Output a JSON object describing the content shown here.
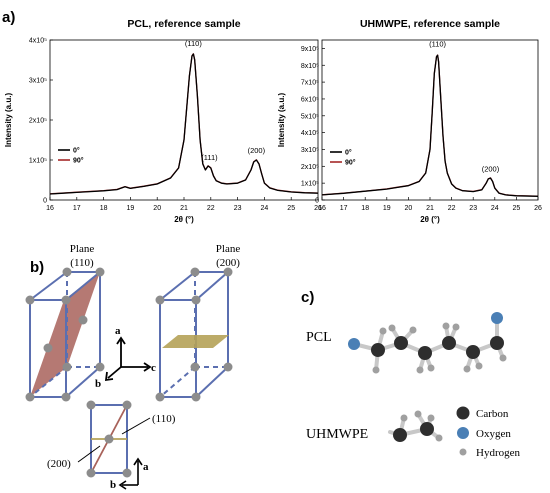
{
  "panels": {
    "a": "a)",
    "b": "b)",
    "c": "c)"
  },
  "chart_data": [
    {
      "type": "line",
      "title": "PCL, reference sample",
      "xlabel": "2θ (°)",
      "ylabel": "Intensity (a.u.)",
      "xlim": [
        16,
        26
      ],
      "ylim": [
        0,
        400000
      ],
      "x_ticks": [
        "16",
        "17",
        "18",
        "19",
        "20",
        "21",
        "22",
        "23",
        "24",
        "25",
        "26"
      ],
      "y_ticks": [
        {
          "value": 0,
          "label": "0"
        },
        {
          "value": 100000,
          "label": "1x10⁵"
        },
        {
          "value": 200000,
          "label": "2x10⁵"
        },
        {
          "value": 300000,
          "label": "3x10⁵"
        },
        {
          "value": 400000,
          "label": "4x10⁵"
        }
      ],
      "legend_position": "left",
      "series": [
        {
          "name": "0°",
          "color": "#000000",
          "x": [
            16,
            16.5,
            17,
            17.5,
            18,
            18.5,
            18.8,
            19,
            19.5,
            20,
            20.5,
            20.8,
            21,
            21.1,
            21.2,
            21.3,
            21.35,
            21.4,
            21.5,
            21.6,
            21.7,
            21.8,
            21.9,
            22,
            22.1,
            22.2,
            22.4,
            22.6,
            23,
            23.3,
            23.5,
            23.6,
            23.7,
            23.8,
            23.9,
            24,
            24.2,
            24.5,
            25,
            25.5,
            26
          ],
          "y": [
            15000,
            17000,
            19000,
            21000,
            23000,
            26000,
            33000,
            29000,
            34000,
            40000,
            55000,
            80000,
            150000,
            230000,
            310000,
            360000,
            365000,
            350000,
            260000,
            150000,
            90000,
            75000,
            85000,
            80000,
            60000,
            48000,
            42000,
            40000,
            42000,
            50000,
            75000,
            95000,
            100000,
            90000,
            65000,
            42000,
            30000,
            24000,
            20000,
            18000,
            17000
          ]
        },
        {
          "name": "90°",
          "color": "#a52a2a",
          "x": [
            16,
            16.5,
            17,
            17.5,
            18,
            18.5,
            18.8,
            19,
            19.5,
            20,
            20.5,
            20.8,
            21,
            21.1,
            21.2,
            21.3,
            21.35,
            21.4,
            21.5,
            21.6,
            21.7,
            21.8,
            21.9,
            22,
            22.1,
            22.2,
            22.4,
            22.6,
            23,
            23.3,
            23.5,
            23.6,
            23.7,
            23.8,
            23.9,
            24,
            24.2,
            24.5,
            25,
            25.5,
            26
          ],
          "y": [
            15500,
            17500,
            19500,
            21500,
            23500,
            26500,
            33500,
            29500,
            34500,
            40500,
            55500,
            80500,
            150500,
            230500,
            310500,
            360500,
            365500,
            350500,
            260500,
            150500,
            90500,
            75500,
            85500,
            80500,
            60500,
            48500,
            42500,
            40500,
            42500,
            50500,
            75500,
            95500,
            100500,
            90500,
            65500,
            42500,
            30500,
            24500,
            20500,
            18500,
            17500
          ]
        }
      ],
      "annotations": [
        {
          "text": "(110)",
          "x": 21.35,
          "y": 385000
        },
        {
          "text": "(111)",
          "x": 21.95,
          "y": 100000
        },
        {
          "text": "(200)",
          "x": 23.7,
          "y": 118000
        }
      ]
    },
    {
      "type": "line",
      "title": "UHMWPE, reference sample",
      "xlabel": "2θ (°)",
      "ylabel": "Intensity (a.u.)",
      "xlim": [
        16,
        26
      ],
      "ylim": [
        0,
        950000
      ],
      "x_ticks": [
        "16",
        "17",
        "18",
        "19",
        "20",
        "21",
        "22",
        "23",
        "24",
        "25",
        "26"
      ],
      "y_ticks": [
        {
          "value": 0,
          "label": "0"
        },
        {
          "value": 100000,
          "label": "1x10⁵"
        },
        {
          "value": 200000,
          "label": "2x10⁵"
        },
        {
          "value": 300000,
          "label": "3x10⁵"
        },
        {
          "value": 400000,
          "label": "4x10⁵"
        },
        {
          "value": 500000,
          "label": "5x10⁵"
        },
        {
          "value": 600000,
          "label": "6x10⁵"
        },
        {
          "value": 700000,
          "label": "7x10⁵"
        },
        {
          "value": 800000,
          "label": "8x10⁵"
        },
        {
          "value": 900000,
          "label": "9x10⁵"
        }
      ],
      "legend_position": "left",
      "series": [
        {
          "name": "0°",
          "color": "#000000",
          "x": [
            16,
            17,
            18,
            19,
            19.5,
            20,
            20.5,
            20.8,
            21,
            21.1,
            21.2,
            21.3,
            21.35,
            21.4,
            21.5,
            21.6,
            21.7,
            21.8,
            22,
            22.2,
            22.5,
            23,
            23.4,
            23.6,
            23.7,
            23.8,
            23.9,
            24,
            24.2,
            24.5,
            25,
            26
          ],
          "y": [
            30000,
            40000,
            52000,
            65000,
            75000,
            85000,
            110000,
            160000,
            300000,
            520000,
            750000,
            850000,
            860000,
            820000,
            600000,
            380000,
            230000,
            160000,
            95000,
            70000,
            55000,
            50000,
            60000,
            100000,
            125000,
            130000,
            110000,
            70000,
            40000,
            30000,
            25000,
            22000
          ]
        },
        {
          "name": "90°",
          "color": "#a52a2a",
          "x": [
            16,
            17,
            18,
            19,
            19.5,
            20,
            20.5,
            20.8,
            21,
            21.1,
            21.2,
            21.3,
            21.35,
            21.4,
            21.5,
            21.6,
            21.7,
            21.8,
            22,
            22.2,
            22.5,
            23,
            23.4,
            23.6,
            23.7,
            23.8,
            23.9,
            24,
            24.2,
            24.5,
            25,
            26
          ],
          "y": [
            31000,
            41000,
            53000,
            66000,
            76000,
            86000,
            111000,
            161000,
            301000,
            521000,
            751000,
            851000,
            861000,
            821000,
            601000,
            381000,
            231000,
            161000,
            96000,
            71000,
            56000,
            51000,
            61000,
            101000,
            126000,
            131000,
            111000,
            71000,
            41000,
            31000,
            26000,
            23000
          ]
        }
      ],
      "annotations": [
        {
          "text": "(110)",
          "x": 21.35,
          "y": 910000
        },
        {
          "text": "(200)",
          "x": 23.8,
          "y": 170000
        }
      ]
    }
  ],
  "crystal": {
    "plane_label": "Plane",
    "plane_110": "(110)",
    "plane_200": "(200)",
    "axis_a": "a",
    "axis_b": "b",
    "axis_c": "c",
    "bottom_110": "(110)",
    "bottom_200": "(200)",
    "bottom_a": "a",
    "bottom_b": "b",
    "colors": {
      "cell": "#5b6fb0",
      "atom": "#8c8c8c",
      "plane110": "#a8625a",
      "plane200": "#b5a258"
    }
  },
  "molecules": {
    "pcl_label": "PCL",
    "uhmwpe_label": "UHMWPE",
    "legend": {
      "carbon": "Carbon",
      "oxygen": "Oxygen",
      "hydrogen": "Hydrogen"
    },
    "colors": {
      "carbon": "#2e2e2e",
      "oxygen": "#4a7fb5",
      "hydrogen": "#a0a0a0",
      "bond": "#c8c8c8"
    }
  }
}
